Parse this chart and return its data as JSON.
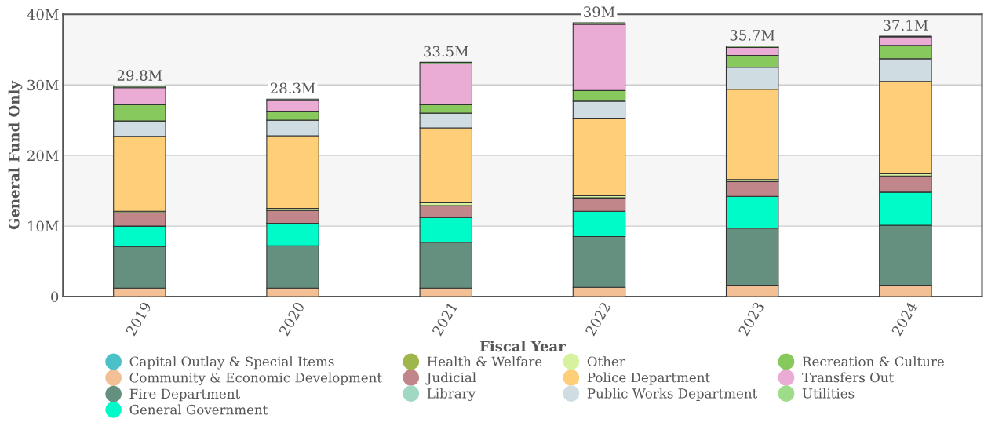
{
  "chart_data": {
    "type": "bar",
    "stacked": true,
    "xlabel": "Fiscal Year",
    "ylabel": "General Fund Only",
    "categories": [
      "2019",
      "2020",
      "2021",
      "2022",
      "2023",
      "2024"
    ],
    "ylim": [
      0,
      40
    ],
    "yticks": [
      {
        "value": 0,
        "label": "0"
      },
      {
        "value": 10,
        "label": "10M"
      },
      {
        "value": 20,
        "label": "20M"
      },
      {
        "value": 30,
        "label": "30M"
      },
      {
        "value": 40,
        "label": "40M"
      }
    ],
    "grid": "y",
    "legend": "bottom",
    "bands": [
      {
        "axis": "y",
        "from": 10,
        "to": 20,
        "color": "#f6f6f6"
      },
      {
        "axis": "y",
        "from": 30,
        "to": 40,
        "color": "#f6f6f6"
      }
    ],
    "totals": [
      "29.8M",
      "28.3M",
      "33.5M",
      "39M",
      "35.7M",
      "37.1M"
    ],
    "series": [
      {
        "name": "Capital Outlay & Special Items",
        "color": "#4bc0c8",
        "values": [
          0,
          0,
          0,
          0,
          0,
          0
        ]
      },
      {
        "name": "Community & Economic Development",
        "color": "#f3c095",
        "values": [
          1.2,
          1.2,
          1.2,
          1.3,
          1.6,
          1.6
        ]
      },
      {
        "name": "Fire Department",
        "color": "#65907f",
        "values": [
          5.9,
          6.0,
          6.5,
          7.2,
          8.1,
          8.5
        ]
      },
      {
        "name": "General Government",
        "color": "#00fbc8",
        "values": [
          2.9,
          3.2,
          3.5,
          3.6,
          4.5,
          4.7
        ]
      },
      {
        "name": "Health & Welfare",
        "color": "#9fb64a",
        "values": [
          0,
          0,
          0,
          0,
          0,
          0
        ]
      },
      {
        "name": "Judicial",
        "color": "#c0868a",
        "values": [
          1.9,
          1.8,
          1.7,
          1.9,
          2.1,
          2.3
        ]
      },
      {
        "name": "Library",
        "color": "#a0d8c4",
        "values": [
          0,
          0,
          0,
          0,
          0,
          0
        ]
      },
      {
        "name": "Other",
        "color": "#d7f29e",
        "values": [
          0.2,
          0.3,
          0.4,
          0.3,
          0.3,
          0.3
        ]
      },
      {
        "name": "Police Department",
        "color": "#fecf78",
        "values": [
          10.6,
          10.3,
          10.6,
          10.9,
          12.8,
          13.1
        ]
      },
      {
        "name": "Public Works Department",
        "color": "#cfdce1",
        "values": [
          2.2,
          2.2,
          2.1,
          2.5,
          3.1,
          3.2
        ]
      },
      {
        "name": "Recreation & Culture",
        "color": "#88c95d",
        "values": [
          2.3,
          1.2,
          1.2,
          1.5,
          1.7,
          1.9
        ]
      },
      {
        "name": "Transfers Out",
        "color": "#eaabd4",
        "values": [
          2.4,
          1.6,
          5.8,
          9.4,
          1.1,
          1.2
        ]
      },
      {
        "name": "Utilities",
        "color": "#9edc8c",
        "values": [
          0.2,
          0.2,
          0.2,
          0.2,
          0.2,
          0.1
        ]
      }
    ]
  }
}
